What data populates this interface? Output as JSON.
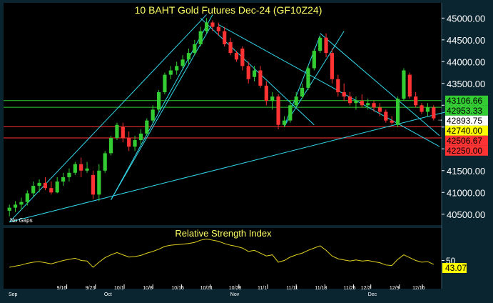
{
  "title": "10 BAHT Gold Futures Dec-24 (GF10Z24)",
  "note": "No Gaps",
  "colors": {
    "background": "#000000",
    "frame": "#0a2530",
    "axis_text": "#ffffff",
    "title_text": "#ffff66",
    "up_candle": "#33cc33",
    "down_candle": "#ff3333",
    "trend_line": "#33d6e8",
    "level_green": "#33cc33",
    "level_red": "#ff3333",
    "rsi_line": "#e0d020",
    "rsi_badge": "#ffff00"
  },
  "price_axis": {
    "ticks": [
      "45000.00",
      "44500.00",
      "44000.00",
      "43500.00",
      "43000.00",
      "42500.00",
      "42000.00",
      "41500.00",
      "41000.00",
      "40500.00"
    ],
    "badges": [
      {
        "label": "43106.66",
        "value": 43106.66,
        "color": "#33cc33",
        "text": "#000000"
      },
      {
        "label": "42953.33",
        "value": 42953.33,
        "color": "#33cc33",
        "text": "#000000"
      },
      {
        "label": "42893.75",
        "value": 42893.75,
        "color": "#ffffff",
        "text": "#000000"
      },
      {
        "label": "42740.00",
        "value": 42740.0,
        "color": "#ffff00",
        "text": "#000000"
      },
      {
        "label": "42506.67",
        "value": 42506.67,
        "color": "#ff3333",
        "text": "#000000"
      },
      {
        "label": "42250.00",
        "value": 42250.0,
        "color": "#ff3333",
        "text": "#000000"
      }
    ]
  },
  "x_axis": {
    "day_labels": [
      "9/16",
      "9/23",
      "10/1",
      "10/8",
      "10/15",
      "10/21",
      "10/28",
      "11/1",
      "11/11",
      "11/18",
      "11/25",
      "12/2",
      "12/9",
      "12/16"
    ],
    "month_labels": [
      "Sep",
      "Oct",
      "Nov",
      "Dec"
    ]
  },
  "rsi": {
    "title": "Relative Strength Index",
    "tick": "50",
    "value_label": "43.07",
    "value": 43.07
  },
  "chart_data": {
    "type": "candlestick",
    "title": "10 BAHT Gold Futures Dec-24 (GF10Z24)",
    "ylim": [
      40250,
      45350
    ],
    "series": [
      {
        "name": "",
        "candles": [
          {
            "o": 40580,
            "h": 40720,
            "l": 40450,
            "c": 40650
          },
          {
            "o": 40650,
            "h": 40800,
            "l": 40550,
            "c": 40720
          },
          {
            "o": 40720,
            "h": 40880,
            "l": 40600,
            "c": 40780
          },
          {
            "o": 40780,
            "h": 41050,
            "l": 40700,
            "c": 40980
          },
          {
            "o": 40980,
            "h": 41250,
            "l": 40900,
            "c": 41150
          },
          {
            "o": 41150,
            "h": 41300,
            "l": 41000,
            "c": 41220
          },
          {
            "o": 41220,
            "h": 41350,
            "l": 41050,
            "c": 41100
          },
          {
            "o": 41100,
            "h": 41250,
            "l": 40950,
            "c": 41000
          },
          {
            "o": 41000,
            "h": 41350,
            "l": 40980,
            "c": 41250
          },
          {
            "o": 41250,
            "h": 41450,
            "l": 41150,
            "c": 41350
          },
          {
            "o": 41350,
            "h": 41550,
            "l": 41250,
            "c": 41450
          },
          {
            "o": 41450,
            "h": 41700,
            "l": 41400,
            "c": 41650
          },
          {
            "o": 41650,
            "h": 41800,
            "l": 41350,
            "c": 41500
          },
          {
            "o": 41500,
            "h": 41700,
            "l": 41450,
            "c": 41550
          },
          {
            "o": 41400,
            "h": 41500,
            "l": 40850,
            "c": 40950
          },
          {
            "o": 40950,
            "h": 41650,
            "l": 40800,
            "c": 41500
          },
          {
            "o": 41500,
            "h": 41950,
            "l": 41450,
            "c": 41900
          },
          {
            "o": 41900,
            "h": 42300,
            "l": 41850,
            "c": 42250
          },
          {
            "o": 42250,
            "h": 42600,
            "l": 42200,
            "c": 42550
          },
          {
            "o": 42500,
            "h": 42600,
            "l": 42150,
            "c": 42250
          },
          {
            "o": 42250,
            "h": 42400,
            "l": 41950,
            "c": 42050
          },
          {
            "o": 42050,
            "h": 42300,
            "l": 41950,
            "c": 42200
          },
          {
            "o": 42200,
            "h": 42450,
            "l": 42100,
            "c": 42350
          },
          {
            "o": 42350,
            "h": 42700,
            "l": 42300,
            "c": 42650
          },
          {
            "o": 42650,
            "h": 43000,
            "l": 42600,
            "c": 42900
          },
          {
            "o": 42900,
            "h": 43350,
            "l": 42850,
            "c": 43300
          },
          {
            "o": 43300,
            "h": 43750,
            "l": 43250,
            "c": 43700
          },
          {
            "o": 43700,
            "h": 43900,
            "l": 43600,
            "c": 43800
          },
          {
            "o": 43800,
            "h": 44000,
            "l": 43700,
            "c": 43900
          },
          {
            "o": 43900,
            "h": 44150,
            "l": 43850,
            "c": 44050
          },
          {
            "o": 44050,
            "h": 44300,
            "l": 43950,
            "c": 44200
          },
          {
            "o": 44200,
            "h": 44500,
            "l": 44150,
            "c": 44400
          },
          {
            "o": 44400,
            "h": 44800,
            "l": 44350,
            "c": 44700
          },
          {
            "o": 44700,
            "h": 45000,
            "l": 44650,
            "c": 44900
          },
          {
            "o": 44900,
            "h": 44950,
            "l": 44700,
            "c": 44800
          },
          {
            "o": 44800,
            "h": 44900,
            "l": 44600,
            "c": 44700
          },
          {
            "o": 44700,
            "h": 44800,
            "l": 44350,
            "c": 44400
          },
          {
            "o": 44450,
            "h": 44550,
            "l": 44150,
            "c": 44200
          },
          {
            "o": 44200,
            "h": 44250,
            "l": 44000,
            "c": 44050
          },
          {
            "o": 44300,
            "h": 44350,
            "l": 43800,
            "c": 43900
          },
          {
            "o": 43900,
            "h": 44000,
            "l": 43500,
            "c": 43600
          },
          {
            "o": 43650,
            "h": 43900,
            "l": 43550,
            "c": 43800
          },
          {
            "o": 43800,
            "h": 43900,
            "l": 43400,
            "c": 43450
          },
          {
            "o": 43450,
            "h": 43550,
            "l": 43000,
            "c": 43100
          },
          {
            "o": 43100,
            "h": 43300,
            "l": 42900,
            "c": 43200
          },
          {
            "o": 43200,
            "h": 43250,
            "l": 42450,
            "c": 42550
          },
          {
            "o": 42550,
            "h": 42750,
            "l": 42500,
            "c": 42650
          },
          {
            "o": 42650,
            "h": 43100,
            "l": 42600,
            "c": 43000
          },
          {
            "o": 43000,
            "h": 43300,
            "l": 42950,
            "c": 43200
          },
          {
            "o": 43200,
            "h": 43500,
            "l": 43150,
            "c": 43400
          },
          {
            "o": 43400,
            "h": 43900,
            "l": 43350,
            "c": 43850
          },
          {
            "o": 43850,
            "h": 44300,
            "l": 43800,
            "c": 44250
          },
          {
            "o": 44250,
            "h": 44600,
            "l": 44200,
            "c": 44550
          },
          {
            "o": 44550,
            "h": 44650,
            "l": 44100,
            "c": 44200
          },
          {
            "o": 44200,
            "h": 44300,
            "l": 43500,
            "c": 43600
          },
          {
            "o": 43600,
            "h": 43700,
            "l": 43200,
            "c": 43300
          },
          {
            "o": 43300,
            "h": 43500,
            "l": 43100,
            "c": 43200
          },
          {
            "o": 43200,
            "h": 43300,
            "l": 43000,
            "c": 43050
          },
          {
            "o": 43050,
            "h": 43200,
            "l": 42900,
            "c": 43100
          },
          {
            "o": 43100,
            "h": 43250,
            "l": 42950,
            "c": 43000
          },
          {
            "o": 43000,
            "h": 43150,
            "l": 42900,
            "c": 43050
          },
          {
            "o": 43050,
            "h": 43100,
            "l": 42850,
            "c": 42950
          },
          {
            "o": 42950,
            "h": 43050,
            "l": 42750,
            "c": 42850
          },
          {
            "o": 42850,
            "h": 42900,
            "l": 42600,
            "c": 42650
          },
          {
            "o": 42650,
            "h": 42750,
            "l": 42550,
            "c": 42600
          },
          {
            "o": 42550,
            "h": 43200,
            "l": 42500,
            "c": 43150
          },
          {
            "o": 43150,
            "h": 43850,
            "l": 43100,
            "c": 43800
          },
          {
            "o": 43700,
            "h": 43750,
            "l": 43150,
            "c": 43200
          },
          {
            "o": 43200,
            "h": 43300,
            "l": 42950,
            "c": 43000
          },
          {
            "o": 43000,
            "h": 43050,
            "l": 42800,
            "c": 42850
          },
          {
            "o": 42850,
            "h": 43050,
            "l": 42750,
            "c": 42950
          },
          {
            "o": 42950,
            "h": 43000,
            "l": 42650,
            "c": 42700
          }
        ]
      }
    ],
    "levels": [
      {
        "value": 43106.66,
        "color": "#33cc33"
      },
      {
        "value": 42953.33,
        "color": "#33cc33"
      },
      {
        "value": 42506.67,
        "color": "#ff3333"
      },
      {
        "value": 42250.0,
        "color": "#ff3333"
      }
    ],
    "trendlines": [
      {
        "from": [
          0,
          40320
        ],
        "to": [
          33,
          45080
        ]
      },
      {
        "from": [
          17,
          40830
        ],
        "to": [
          34,
          44880
        ]
      },
      {
        "from": [
          17,
          40830
        ],
        "to": [
          34,
          45080
        ]
      },
      {
        "from": [
          0,
          40320
        ],
        "to": [
          74,
          42880
        ]
      },
      {
        "from": [
          32,
          45000
        ],
        "to": [
          51,
          42550
        ]
      },
      {
        "from": [
          46,
          42520
        ],
        "to": [
          56,
          44700
        ]
      },
      {
        "from": [
          46,
          42520
        ],
        "to": [
          52,
          44600
        ]
      },
      {
        "from": [
          52,
          44650
        ],
        "to": [
          72,
          42300
        ]
      },
      {
        "from": [
          35,
          44850
        ],
        "to": [
          72,
          42050
        ]
      }
    ],
    "rsi": {
      "name": "Relative Strength Index",
      "ylim": [
        0,
        100
      ],
      "values": [
        38,
        40,
        42,
        45,
        47,
        48,
        46,
        44,
        47,
        50,
        52,
        54,
        50,
        49,
        38,
        47,
        55,
        60,
        64,
        60,
        56,
        57,
        59,
        63,
        66,
        70,
        75,
        77,
        78,
        79,
        80,
        82,
        86,
        88,
        86,
        84,
        80,
        77,
        75,
        72,
        66,
        68,
        63,
        58,
        60,
        47,
        50,
        56,
        60,
        63,
        68,
        72,
        76,
        68,
        58,
        53,
        51,
        49,
        51,
        49,
        50,
        48,
        46,
        42,
        41,
        52,
        60,
        55,
        50,
        47,
        48,
        43.07
      ]
    }
  }
}
